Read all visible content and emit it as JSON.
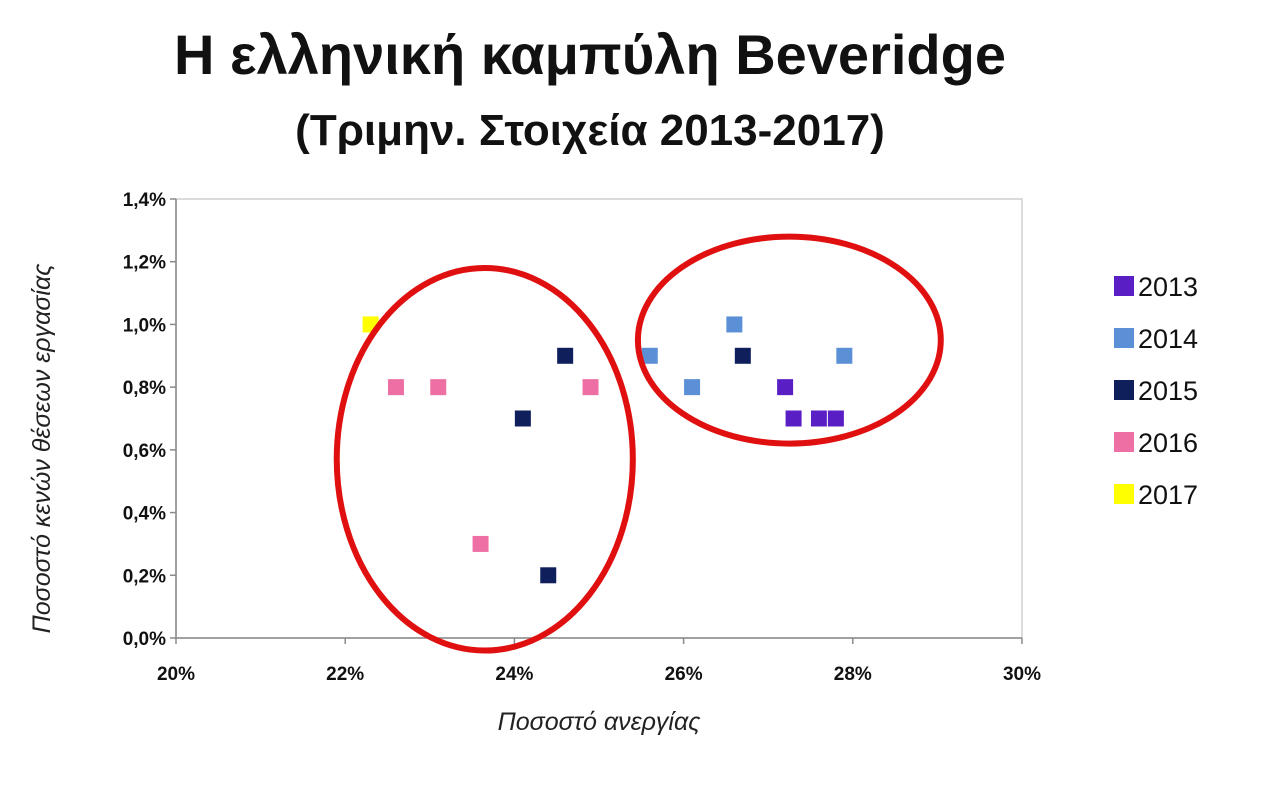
{
  "chart_data": {
    "type": "scatter",
    "title": "Η ελληνική καμπύλη Beveridge",
    "subtitle": "(Τριμην. Στοιχεία 2013-2017)",
    "xlabel": "Ποσοστό ανεργίας",
    "ylabel": "Ποσοστό κενών θέσεων εργασίας",
    "xlim": [
      20,
      30
    ],
    "ylim": [
      0.0,
      1.4
    ],
    "x_ticks": [
      20,
      22,
      24,
      26,
      28,
      30
    ],
    "x_tick_labels": [
      "20%",
      "22%",
      "24%",
      "26%",
      "28%",
      "30%"
    ],
    "y_ticks": [
      0.0,
      0.2,
      0.4,
      0.6,
      0.8,
      1.0,
      1.2,
      1.4
    ],
    "y_tick_labels": [
      "0,0%",
      "0,2%",
      "0,4%",
      "0,6%",
      "0,8%",
      "1,0%",
      "1,2%",
      "1,4%"
    ],
    "grid": false,
    "legend_position": "right",
    "marker": "square",
    "series": [
      {
        "name": "2013",
        "color": "#5a1fc4",
        "points": [
          [
            27.2,
            0.8
          ],
          [
            27.3,
            0.7
          ],
          [
            27.6,
            0.7
          ],
          [
            27.8,
            0.7
          ]
        ]
      },
      {
        "name": "2014",
        "color": "#5b8fd6",
        "points": [
          [
            26.6,
            1.0
          ],
          [
            25.6,
            0.9
          ],
          [
            26.1,
            0.8
          ],
          [
            27.9,
            0.9
          ]
        ]
      },
      {
        "name": "2015",
        "color": "#0f1f5c",
        "points": [
          [
            26.7,
            0.9
          ],
          [
            24.6,
            0.9
          ],
          [
            24.1,
            0.7
          ],
          [
            24.4,
            0.2
          ]
        ]
      },
      {
        "name": "2016",
        "color": "#ee6fa3",
        "points": [
          [
            22.6,
            0.8
          ],
          [
            23.1,
            0.8
          ],
          [
            24.9,
            0.8
          ],
          [
            23.6,
            0.3
          ]
        ]
      },
      {
        "name": "2017",
        "color": "#ffff00",
        "points": [
          [
            22.3,
            1.0
          ]
        ]
      }
    ],
    "annotations": [
      {
        "type": "ellipse",
        "color": "#e01010",
        "center": [
          23.65,
          0.57
        ],
        "radii": [
          1.75,
          0.61
        ]
      },
      {
        "type": "ellipse",
        "color": "#e01010",
        "center": [
          27.25,
          0.95
        ],
        "radii": [
          1.79,
          0.33
        ]
      }
    ]
  }
}
